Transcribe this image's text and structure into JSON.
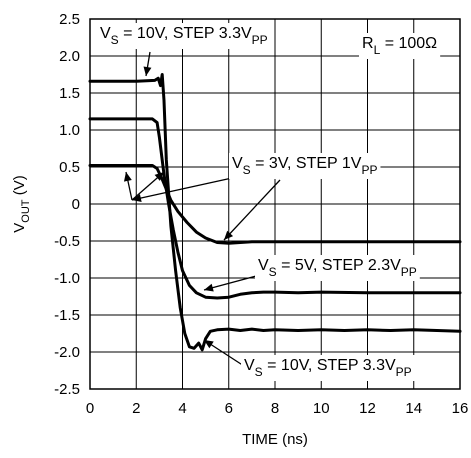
{
  "chart_data": {
    "type": "line",
    "xlabel": "TIME (ns)",
    "ylabel": {
      "main": "V",
      "sub": "OUT",
      "unit": " (V)"
    },
    "xlim": [
      0,
      16
    ],
    "ylim": [
      -2.5,
      2.5
    ],
    "x_ticks": [
      "0",
      "2",
      "4",
      "6",
      "8",
      "10",
      "12",
      "14",
      "16"
    ],
    "y_ticks": [
      "2.5",
      "2.0",
      "1.5",
      "1.0",
      "0.5",
      "0",
      "-0.5",
      "-1.0",
      "-1.5",
      "-2.0",
      "-2.5"
    ],
    "grid": true,
    "series": [
      {
        "points": [
          [
            0,
            1.66
          ],
          [
            1.0,
            1.66
          ],
          [
            2.0,
            1.66
          ],
          [
            2.8,
            1.67
          ],
          [
            2.95,
            1.7
          ],
          [
            3.05,
            1.6
          ],
          [
            3.12,
            1.75
          ],
          [
            3.2,
            1.4
          ],
          [
            3.3,
            0.6
          ],
          [
            3.5,
            -0.3
          ],
          [
            3.7,
            -0.9
          ],
          [
            3.9,
            -1.4
          ],
          [
            4.1,
            -1.75
          ],
          [
            4.3,
            -1.93
          ],
          [
            4.5,
            -1.95
          ],
          [
            4.7,
            -1.88
          ],
          [
            4.85,
            -1.97
          ],
          [
            5.0,
            -1.82
          ],
          [
            5.2,
            -1.72
          ],
          [
            5.5,
            -1.7
          ],
          [
            6.0,
            -1.69
          ],
          [
            6.5,
            -1.71
          ],
          [
            7.0,
            -1.69
          ],
          [
            7.5,
            -1.71
          ],
          [
            8.0,
            -1.7
          ],
          [
            9.0,
            -1.71
          ],
          [
            10.0,
            -1.7
          ],
          [
            11.0,
            -1.71
          ],
          [
            12.0,
            -1.7
          ],
          [
            13.0,
            -1.71
          ],
          [
            14.0,
            -1.7
          ],
          [
            15.0,
            -1.71
          ],
          [
            16.0,
            -1.72
          ]
        ]
      },
      {
        "points": [
          [
            0,
            1.15
          ],
          [
            1.0,
            1.15
          ],
          [
            2.0,
            1.15
          ],
          [
            2.7,
            1.15
          ],
          [
            2.9,
            1.1
          ],
          [
            3.0,
            0.9
          ],
          [
            3.2,
            0.4
          ],
          [
            3.4,
            0.0
          ],
          [
            3.6,
            -0.35
          ],
          [
            3.8,
            -0.65
          ],
          [
            4.0,
            -0.9
          ],
          [
            4.3,
            -1.1
          ],
          [
            4.6,
            -1.2
          ],
          [
            5.0,
            -1.26
          ],
          [
            5.5,
            -1.27
          ],
          [
            6.0,
            -1.26
          ],
          [
            6.5,
            -1.22
          ],
          [
            7.0,
            -1.2
          ],
          [
            7.5,
            -1.19
          ],
          [
            8.0,
            -1.19
          ],
          [
            9.0,
            -1.2
          ],
          [
            10.0,
            -1.19
          ],
          [
            12.0,
            -1.2
          ],
          [
            14.0,
            -1.2
          ],
          [
            16.0,
            -1.2
          ]
        ]
      },
      {
        "points": [
          [
            0,
            0.52
          ],
          [
            1.0,
            0.52
          ],
          [
            2.0,
            0.52
          ],
          [
            2.7,
            0.52
          ],
          [
            2.9,
            0.48
          ],
          [
            3.1,
            0.35
          ],
          [
            3.3,
            0.2
          ],
          [
            3.5,
            0.05
          ],
          [
            3.8,
            -0.1
          ],
          [
            4.2,
            -0.25
          ],
          [
            4.6,
            -0.38
          ],
          [
            5.0,
            -0.46
          ],
          [
            5.5,
            -0.52
          ],
          [
            6.0,
            -0.53
          ],
          [
            6.5,
            -0.52
          ],
          [
            7.0,
            -0.51
          ],
          [
            8.0,
            -0.51
          ],
          [
            10.0,
            -0.51
          ],
          [
            12.0,
            -0.51
          ],
          [
            14.0,
            -0.51
          ],
          [
            16.0,
            -0.51
          ]
        ]
      }
    ],
    "annotations": [
      {
        "id": "top-10v",
        "parts": [
          "V",
          "S",
          " = 10V, STEP 3.3V",
          "PP"
        ]
      },
      {
        "id": "rl",
        "parts": [
          "R",
          "L",
          " = 100Ω",
          ""
        ]
      },
      {
        "id": "mid-3v",
        "parts": [
          "V",
          "S",
          " = 3V, STEP 1V",
          "PP"
        ]
      },
      {
        "id": "mid-5v",
        "parts": [
          "V",
          "S",
          " = 5V, STEP 2.3V",
          "PP"
        ]
      },
      {
        "id": "bot-10v",
        "parts": [
          "V",
          "S",
          " = 10V, STEP 3.3V",
          "PP"
        ]
      }
    ]
  }
}
